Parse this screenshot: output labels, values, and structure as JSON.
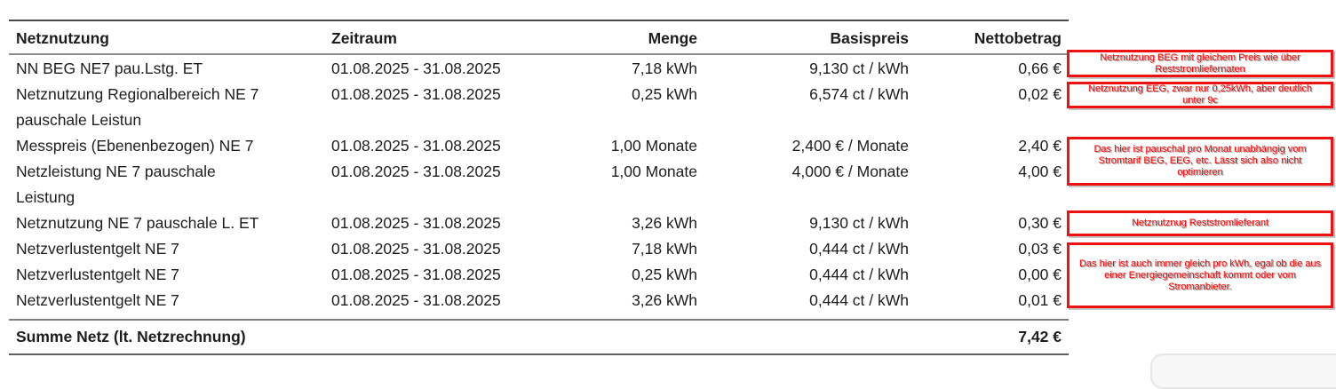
{
  "colors": {
    "annotation_red": "#ff0000",
    "annotation_border": "#ee1111",
    "table_top_rule": "#4a4a4a",
    "table_header_rule": "#8c8c8c",
    "text": "#1d1d1d"
  },
  "table": {
    "headers": {
      "col1": "Netznutzung",
      "col2": "Zeitraum",
      "col3": "Menge",
      "col4": "Basispreis",
      "col5": "Nettobetrag"
    },
    "rows": [
      {
        "line1": "NN BEG NE7 pau.Lstg. ET",
        "period": "01.08.2025 - 31.08.2025",
        "menge": "7,18 kWh",
        "basispreis": "9,130 ct / kWh",
        "netto": "0,66 €"
      },
      {
        "line1": "Netznutzung Regionalbereich NE 7",
        "line2": "pauschale Leistun",
        "period": "01.08.2025 - 31.08.2025",
        "menge": "0,25 kWh",
        "basispreis": "6,574 ct / kWh",
        "netto": "0,02 €"
      },
      {
        "line1": "Messpreis (Ebenenbezogen) NE 7",
        "period": "01.08.2025 - 31.08.2025",
        "menge": "1,00 Monate",
        "basispreis": "2,400 € / Monate",
        "netto": "2,40 €"
      },
      {
        "line1": "Netzleistung NE 7 pauschale",
        "line2": "Leistung",
        "period": "01.08.2025 - 31.08.2025",
        "menge": "1,00 Monate",
        "basispreis": "4,000 € / Monate",
        "netto": "4,00 €"
      },
      {
        "line1": "Netznutzung NE 7 pauschale L. ET",
        "period": "01.08.2025 - 31.08.2025",
        "menge": "3,26 kWh",
        "basispreis": "9,130 ct / kWh",
        "netto": "0,30 €"
      },
      {
        "line1": "Netzverlustentgelt NE 7",
        "period": "01.08.2025 - 31.08.2025",
        "menge": "7,18 kWh",
        "basispreis": "0,444 ct / kWh",
        "netto": "0,03 €"
      },
      {
        "line1": "Netzverlustentgelt NE 7",
        "period": "01.08.2025 - 31.08.2025",
        "menge": "0,25 kWh",
        "basispreis": "0,444 ct / kWh",
        "netto": "0,00 €"
      },
      {
        "line1": "Netzverlustentgelt NE 7",
        "period": "01.08.2025 - 31.08.2025",
        "menge": "3,26 kWh",
        "basispreis": "0,444 ct / kWh",
        "netto": "0,01 €"
      }
    ],
    "summary": {
      "label": "Summe Netz (lt. Netzrechnung)",
      "value": "7,42 €"
    }
  },
  "annotations": [
    {
      "text": "Netznutzung BEG mit gleichem Preis wie über Reststromliefernaten"
    },
    {
      "text": "Netznutzung EEG, zwar nur 0,25kWh, aber deutlich unter 9c"
    },
    {
      "text": "Das hier ist pauschal pro Monat unabhängig vom Stromtarif BEG, EEG, etc. Lässt sich also nicht optimieren"
    },
    {
      "text": "Netznutznug Reststromlieferant"
    },
    {
      "text": "Das hier ist auch immer gleich pro kWh, egal ob die aus einer Energiegemeinschaft kommt oder vom Stromanbieter."
    }
  ]
}
